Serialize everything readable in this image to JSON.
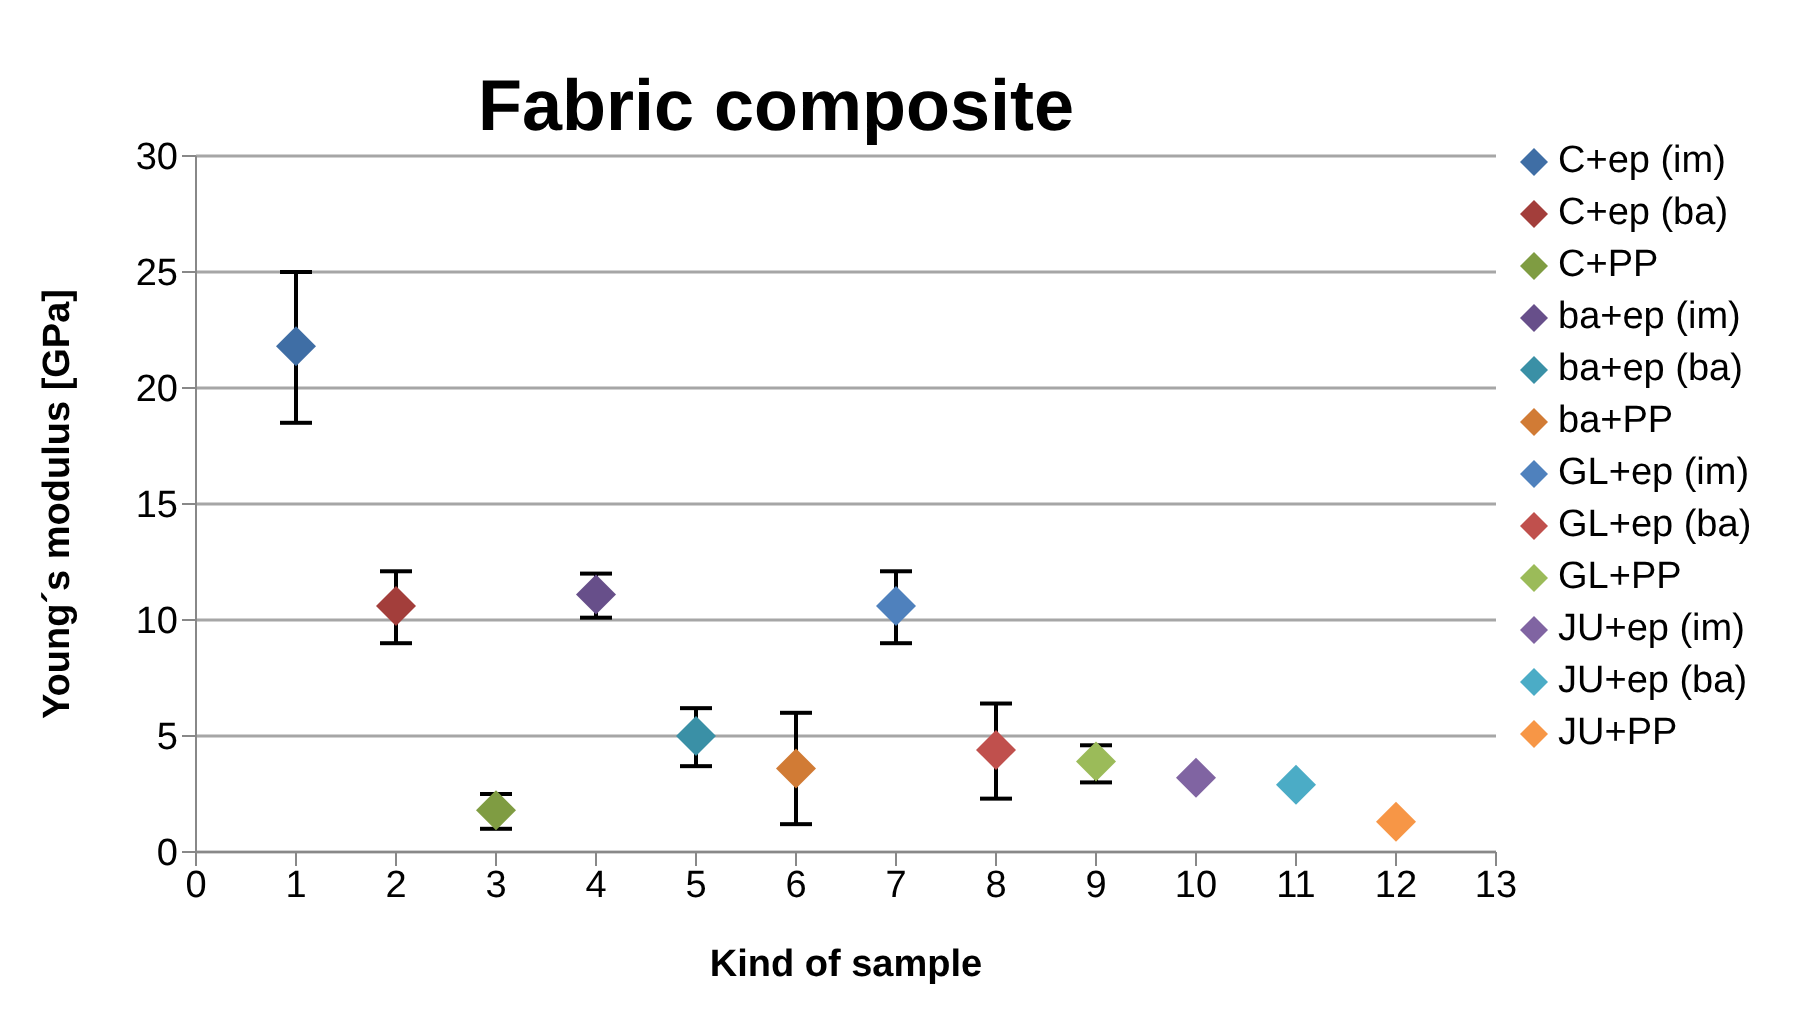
{
  "chart_data": {
    "type": "scatter",
    "title": "Fabric composite",
    "xlabel": "Kind of sample",
    "ylabel": "Young´s modulus [GPa]",
    "xlim": [
      0,
      13
    ],
    "xticks": [
      0,
      1,
      2,
      3,
      4,
      5,
      6,
      7,
      8,
      9,
      10,
      11,
      12,
      13
    ],
    "ylim": [
      0,
      30
    ],
    "yticks": [
      0,
      5,
      10,
      15,
      20,
      25,
      30
    ],
    "grid": "y",
    "legend": "right",
    "marker": "diamond",
    "series": [
      {
        "name": "C+ep (im)",
        "color": "#3f6ea5",
        "x": [
          1
        ],
        "values": [
          21.8
        ],
        "errors": [
          [
            18.5,
            25
          ]
        ]
      },
      {
        "name": "C+ep (ba)",
        "color": "#a33e3b",
        "x": [
          2
        ],
        "values": [
          10.6
        ],
        "errors": [
          [
            9.0,
            12.1
          ]
        ]
      },
      {
        "name": "C+PP",
        "color": "#7f9c42",
        "x": [
          3
        ],
        "values": [
          1.8
        ],
        "errors": [
          [
            1.0,
            2.5
          ]
        ]
      },
      {
        "name": "ba+ep (im)",
        "color": "#674f8a",
        "x": [
          4
        ],
        "values": [
          11.1
        ],
        "errors": [
          [
            10.1,
            12.0
          ]
        ]
      },
      {
        "name": "ba+ep (ba)",
        "color": "#3a90a6",
        "x": [
          5
        ],
        "values": [
          5.0
        ],
        "errors": [
          [
            3.7,
            6.2
          ]
        ]
      },
      {
        "name": "ba+PP",
        "color": "#d17b35",
        "x": [
          6
        ],
        "values": [
          3.6
        ],
        "errors": [
          [
            1.2,
            6.0
          ]
        ]
      },
      {
        "name": "GL+ep (im)",
        "color": "#4f81bd",
        "x": [
          7
        ],
        "values": [
          10.6
        ],
        "errors": [
          [
            9.0,
            12.1
          ]
        ]
      },
      {
        "name": "GL+ep (ba)",
        "color": "#c0504d",
        "x": [
          8
        ],
        "values": [
          4.4
        ],
        "errors": [
          [
            2.3,
            6.4
          ]
        ]
      },
      {
        "name": "GL+PP",
        "color": "#9bbb59",
        "x": [
          9
        ],
        "values": [
          3.9
        ],
        "errors": [
          [
            3.0,
            4.6
          ]
        ]
      },
      {
        "name": "JU+ep (im)",
        "color": "#8064a2",
        "x": [
          10
        ],
        "values": [
          3.2
        ]
      },
      {
        "name": "JU+ep (ba)",
        "color": "#4bacc6",
        "x": [
          11
        ],
        "values": [
          2.9
        ]
      },
      {
        "name": "JU+PP",
        "color": "#f79646",
        "x": [
          12
        ],
        "values": [
          1.3
        ]
      }
    ]
  }
}
